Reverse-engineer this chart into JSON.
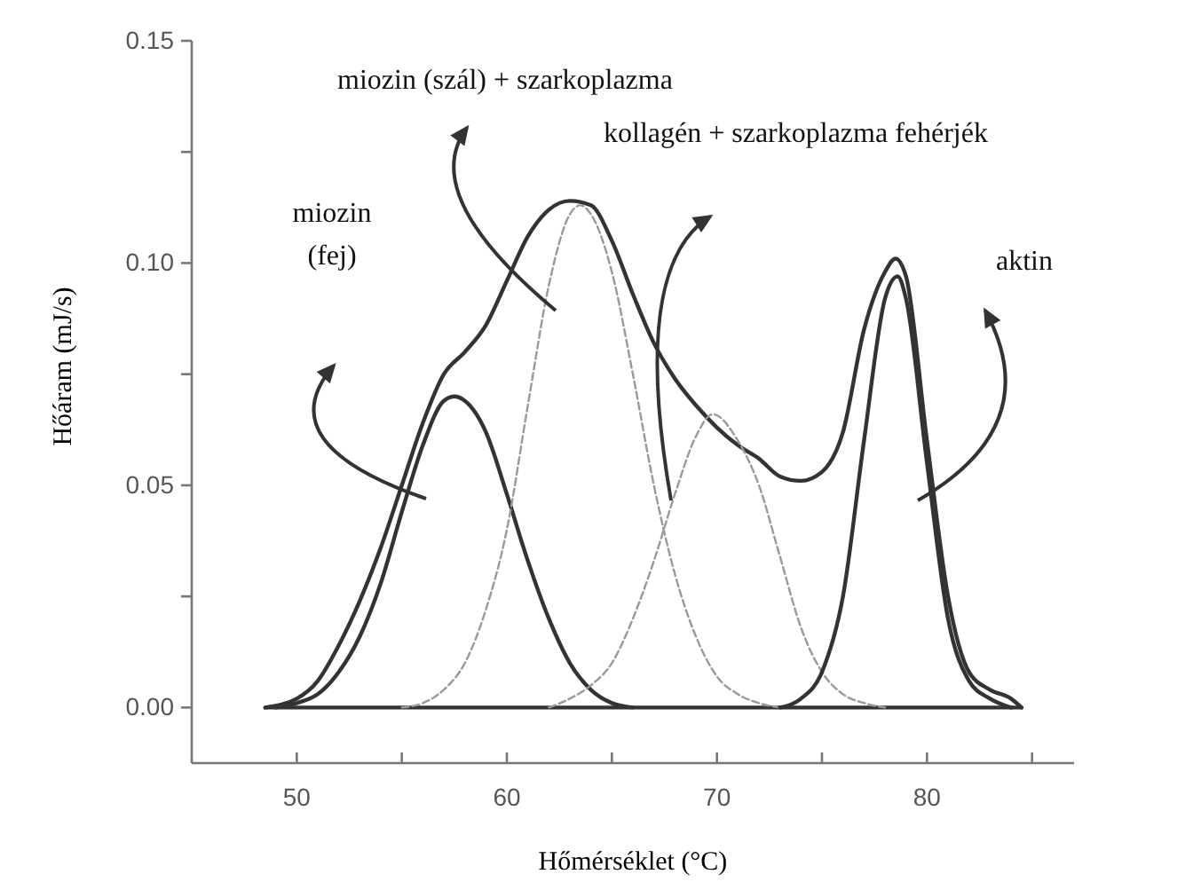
{
  "chart_data": {
    "type": "line",
    "xlabel": "Hőmérséklet (°C)",
    "ylabel": "Hőáram (mJ/s)",
    "xlim": [
      45,
      87
    ],
    "xticks": [
      50,
      {
        "value": 55,
        "label": null
      },
      60,
      {
        "value": 65,
        "label": null
      },
      70,
      {
        "value": 75,
        "label": null
      },
      80,
      {
        "value": 85,
        "label": null
      }
    ],
    "ylim": [
      -0.0125,
      0.15
    ],
    "yticks": [
      {
        "value": 0,
        "label": "0.00"
      },
      {
        "value": 0.025,
        "label": null
      },
      {
        "value": 0.05,
        "label": "0.05"
      },
      {
        "value": 0.075,
        "label": null
      },
      {
        "value": 0.1,
        "label": "0.10"
      },
      {
        "value": 0.125,
        "label": null
      },
      {
        "value": 0.15,
        "label": "0.15"
      }
    ],
    "grid": false,
    "marker": "none",
    "series": [
      {
        "color": "#333333",
        "line_style": "solid",
        "x": [
          48.5,
          84.5
        ],
        "values": [
          0,
          0
        ]
      },
      {
        "color": "#333333",
        "line_style": "solid",
        "x": [
          48.5,
          50,
          51,
          52,
          53,
          54,
          55,
          56,
          57,
          58,
          59,
          60,
          61,
          62,
          63,
          64,
          65,
          66,
          67,
          68,
          69,
          70,
          71,
          72,
          73,
          74,
          75,
          76,
          77,
          78,
          78.5,
          79,
          80,
          81,
          82,
          83,
          84,
          84.5
        ],
        "values": [
          0,
          0.002,
          0.006,
          0.014,
          0.024,
          0.036,
          0.05,
          0.064,
          0.075,
          0.08,
          0.086,
          0.096,
          0.106,
          0.112,
          0.114,
          0.113,
          0.105,
          0.093,
          0.082,
          0.074,
          0.068,
          0.063,
          0.059,
          0.056,
          0.052,
          0.051,
          0.053,
          0.062,
          0.085,
          0.098,
          0.101,
          0.097,
          0.06,
          0.025,
          0.008,
          0.004,
          0.002,
          0
        ]
      },
      {
        "color": "#333333",
        "line_style": "solid",
        "x": [
          49,
          50,
          51,
          52,
          53,
          54,
          55,
          56,
          57,
          57.5,
          58,
          59,
          60,
          61,
          62,
          63,
          64,
          65,
          66
        ],
        "values": [
          0,
          0.001,
          0.003,
          0.008,
          0.016,
          0.028,
          0.044,
          0.059,
          0.069,
          0.07,
          0.069,
          0.062,
          0.048,
          0.033,
          0.02,
          0.01,
          0.004,
          0.001,
          0
        ]
      },
      {
        "color": "#999999",
        "line_style": "dashed",
        "x": [
          55,
          56,
          57,
          58,
          59,
          60,
          61,
          62,
          63,
          63.5,
          64,
          65,
          66,
          67,
          68,
          69,
          70,
          71,
          72,
          73
        ],
        "values": [
          0,
          0.001,
          0.004,
          0.01,
          0.022,
          0.04,
          0.068,
          0.095,
          0.111,
          0.113,
          0.111,
          0.098,
          0.075,
          0.05,
          0.03,
          0.016,
          0.007,
          0.003,
          0.001,
          0
        ]
      },
      {
        "color": "#999999",
        "line_style": "dashed",
        "x": [
          62,
          63,
          64,
          65,
          66,
          67,
          68,
          69,
          69.8,
          71,
          72,
          73,
          74,
          75,
          76,
          77,
          78
        ],
        "values": [
          0,
          0.002,
          0.005,
          0.01,
          0.02,
          0.033,
          0.048,
          0.061,
          0.066,
          0.06,
          0.05,
          0.034,
          0.018,
          0.008,
          0.003,
          0.001,
          0
        ]
      },
      {
        "color": "#333333",
        "line_style": "solid",
        "x": [
          73,
          74,
          75,
          76,
          77,
          78,
          78.6,
          79,
          80,
          81,
          82,
          83,
          84
        ],
        "values": [
          0,
          0.002,
          0.008,
          0.025,
          0.06,
          0.092,
          0.097,
          0.092,
          0.055,
          0.02,
          0.006,
          0.002,
          0
        ]
      }
    ],
    "annotations": [
      "miozin\n(fej)",
      "miozin (szál) + szarkoplazma",
      "kollagén + szarkoplazma fehérjék",
      "aktin"
    ]
  }
}
